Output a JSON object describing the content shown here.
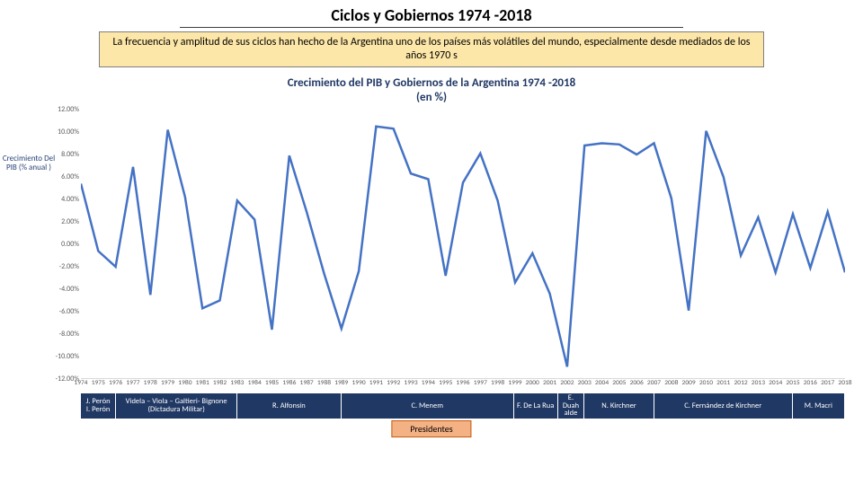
{
  "header": {
    "title": "Ciclos y Gobiernos 1974 -2018",
    "title_fontsize": 18,
    "subtitle": "La frecuencia y amplitud de sus ciclos han hecho de la Argentina uno de los países más volátiles del mundo, especialmente desde mediados de los años 1970 s",
    "subtitle_fontsize": 12,
    "subtitle_bg": "#fce6a8",
    "subtitle_border": "#7f7f7f"
  },
  "chart": {
    "title_line1": "Crecimiento del PIB y Gobiernos de la Argentina 1974 -2018",
    "title_line2": "(en %)",
    "title_fontsize": 13,
    "title_color": "#203864",
    "ylabel": "Crecimiento Del PIB (% anual )",
    "ylabel_color": "#264478",
    "type": "line",
    "line_color": "#4472c4",
    "line_width": 2.5,
    "background": "#ffffff",
    "ylim": [
      -12,
      12
    ],
    "ytick_step": 2,
    "yticks": [
      -12,
      -10,
      -8,
      -6,
      -4,
      -2,
      0,
      2,
      4,
      6,
      8,
      10,
      12
    ],
    "ytick_labels": [
      "-12.00%",
      "-10.00%",
      "-8.00%",
      "-6.00%",
      "-4.00%",
      "-2.00%",
      "0.00%",
      "2.00%",
      "4.00%",
      "6.00%",
      "8.00%",
      "10.00%",
      "12.00%"
    ],
    "xlim": [
      1974,
      2018
    ],
    "years": [
      1974,
      1975,
      1976,
      1977,
      1978,
      1979,
      1980,
      1981,
      1982,
      1983,
      1984,
      1985,
      1986,
      1987,
      1988,
      1989,
      1990,
      1991,
      1992,
      1993,
      1994,
      1995,
      1996,
      1997,
      1998,
      1999,
      2000,
      2001,
      2002,
      2003,
      2004,
      2005,
      2006,
      2007,
      2008,
      2009,
      2010,
      2011,
      2012,
      2013,
      2014,
      2015,
      2016,
      2017,
      2018
    ],
    "values": [
      5.4,
      -0.6,
      -2.0,
      6.9,
      -4.5,
      10.2,
      4.2,
      -5.7,
      -5.0,
      3.9,
      2.2,
      -7.6,
      7.9,
      2.9,
      -2.6,
      -7.5,
      -2.4,
      10.5,
      10.3,
      6.3,
      5.8,
      -2.8,
      5.5,
      8.1,
      3.9,
      -3.4,
      -0.8,
      -4.4,
      -10.9,
      8.8,
      9.0,
      8.9,
      8.0,
      9.0,
      4.1,
      -5.9,
      10.1,
      6.0,
      -1.0,
      2.4,
      -2.5,
      2.7,
      -2.1,
      2.9,
      -2.5
    ]
  },
  "governments": {
    "row_bg": "#203864",
    "row_text_color": "#ffffff",
    "presidentes_label": "Presidentes",
    "presidentes_bg": "#f4b183",
    "items": [
      {
        "label": "J. Perón I. Perón",
        "start": 1974,
        "end": 1976
      },
      {
        "label": "Videla – Viola – Galtieri- Bignone (Dictadura Militar)",
        "start": 1976,
        "end": 1983
      },
      {
        "label": "R. Alfonsín",
        "start": 1983,
        "end": 1989
      },
      {
        "label": "C. Menem",
        "start": 1989,
        "end": 1999
      },
      {
        "label": "F. De La Rua",
        "start": 1999,
        "end": 2001.5
      },
      {
        "label": "E. Duah alde",
        "start": 2001.5,
        "end": 2003
      },
      {
        "label": "N. Kirchner",
        "start": 2003,
        "end": 2007
      },
      {
        "label": "C. Fernández de Kirchner",
        "start": 2007,
        "end": 2015
      },
      {
        "label": "M. Macri",
        "start": 2015,
        "end": 2018
      }
    ]
  }
}
